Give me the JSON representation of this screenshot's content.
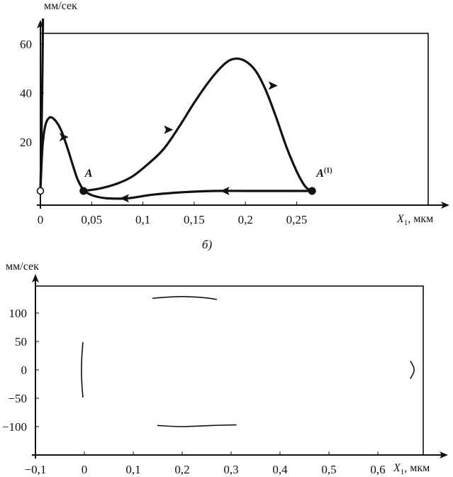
{
  "chart_data": [
    {
      "type": "line",
      "ylabel": "мм/сек",
      "xlabel_var": "X",
      "xlabel_sub": "1",
      "xlabel_unit": ", мкм",
      "xlim": [
        0,
        0.3
      ],
      "ylim": [
        -5,
        68
      ],
      "x_ticks": [
        {
          "v": 0,
          "label": "0"
        },
        {
          "v": 0.05,
          "label": "0,05"
        },
        {
          "v": 0.1,
          "label": "0,1"
        },
        {
          "v": 0.15,
          "label": "0,15"
        },
        {
          "v": 0.2,
          "label": "0,2"
        },
        {
          "v": 0.25,
          "label": "0,25"
        }
      ],
      "y_ticks": [
        {
          "v": 20,
          "label": "20"
        },
        {
          "v": 40,
          "label": "40"
        },
        {
          "v": 60,
          "label": "60"
        }
      ],
      "caption": "б)",
      "series": [
        {
          "points": [
            [
              0,
              0
            ],
            [
              0.001,
              20
            ],
            [
              0.002,
              50
            ],
            [
              0.0025,
              70
            ]
          ]
        },
        {
          "points": [
            [
              0,
              0
            ],
            [
              0.002,
              18
            ],
            [
              0.005,
              27
            ],
            [
              0.009,
              30
            ],
            [
              0.014,
              29
            ],
            [
              0.02,
              25
            ],
            [
              0.026,
              18
            ],
            [
              0.032,
              10
            ],
            [
              0.036,
              5
            ],
            [
              0.041,
              0.8
            ],
            [
              0.042,
              0
            ]
          ]
        },
        {
          "points": [
            [
              0.042,
              0
            ],
            [
              0.058,
              1
            ],
            [
              0.075,
              3
            ],
            [
              0.09,
              6
            ],
            [
              0.105,
              11
            ],
            [
              0.12,
              17
            ],
            [
              0.135,
              26
            ],
            [
              0.15,
              36
            ],
            [
              0.165,
              45
            ],
            [
              0.18,
              52
            ],
            [
              0.19,
              54
            ],
            [
              0.2,
              53
            ],
            [
              0.21,
              49
            ],
            [
              0.22,
              41
            ],
            [
              0.23,
              30
            ],
            [
              0.24,
              18
            ],
            [
              0.25,
              8
            ],
            [
              0.258,
              2
            ],
            [
              0.263,
              0.3
            ],
            [
              0.265,
              0
            ]
          ]
        },
        {
          "points": [
            [
              0.265,
              0
            ],
            [
              0.23,
              0
            ],
            [
              0.2,
              0
            ],
            [
              0.17,
              0
            ],
            [
              0.14,
              -0.5
            ],
            [
              0.11,
              -1.5
            ],
            [
              0.085,
              -3
            ],
            [
              0.065,
              -3
            ],
            [
              0.052,
              -2
            ],
            [
              0.042,
              0
            ]
          ]
        }
      ],
      "arrows": [
        {
          "x": 0.023,
          "y": 22,
          "dir": [
            1,
            -2.2
          ]
        },
        {
          "x": 0.125,
          "y": 25,
          "dir": [
            1,
            0.65
          ]
        },
        {
          "x": 0.227,
          "y": 43,
          "dir": [
            1,
            -1.7
          ]
        },
        {
          "x": 0.18,
          "y": 0,
          "dir": [
            -1,
            0
          ]
        },
        {
          "x": 0.082,
          "y": -3,
          "dir": [
            -1,
            0
          ]
        }
      ],
      "points": [
        {
          "x": 0,
          "y": 0,
          "style": "open",
          "label": ""
        },
        {
          "x": 0.042,
          "y": 0,
          "style": "filled",
          "label": "A",
          "sup": ""
        },
        {
          "x": 0.265,
          "y": 0,
          "style": "filled",
          "label": "A",
          "sup": "(1)"
        }
      ]
    },
    {
      "type": "line",
      "ylabel": "мм/сек",
      "xlabel_var": "X",
      "xlabel_sub": "1",
      "xlabel_unit": ", мкм",
      "xlim": [
        -0.1,
        0.7
      ],
      "ylim": [
        -150,
        160
      ],
      "x_ticks": [
        {
          "v": -0.1,
          "label": "−0,1"
        },
        {
          "v": 0,
          "label": "0"
        },
        {
          "v": 0.1,
          "label": "0,1"
        },
        {
          "v": 0.2,
          "label": "0,2"
        },
        {
          "v": 0.3,
          "label": "0,3"
        },
        {
          "v": 0.4,
          "label": "0,4"
        },
        {
          "v": 0.5,
          "label": "0,5"
        },
        {
          "v": 0.6,
          "label": "0,6"
        }
      ],
      "y_ticks": [
        {
          "v": 100,
          "label": "100"
        },
        {
          "v": 50,
          "label": "50"
        },
        {
          "v": 0,
          "label": "0"
        },
        {
          "v": -50,
          "label": "−50"
        },
        {
          "v": -100,
          "label": "−100"
        }
      ],
      "series": [
        {
          "points": [
            [
              0.14,
              126
            ],
            [
              0.17,
              128
            ],
            [
              0.2,
              129
            ],
            [
              0.23,
              128
            ],
            [
              0.255,
              126
            ],
            [
              0.27,
              124
            ]
          ]
        },
        {
          "points": [
            [
              0.15,
              -98
            ],
            [
              0.2,
              -100
            ],
            [
              0.26,
              -98
            ],
            [
              0.31,
              -97
            ]
          ]
        },
        {
          "points": [
            [
              -0.003,
              48
            ],
            [
              -0.005,
              25
            ],
            [
              -0.006,
              0
            ],
            [
              -0.005,
              -25
            ],
            [
              -0.003,
              -48
            ]
          ]
        },
        {
          "points": [
            [
              0.667,
              15
            ],
            [
              0.673,
              5
            ],
            [
              0.674,
              0
            ],
            [
              0.673,
              -5
            ],
            [
              0.667,
              -15
            ]
          ]
        }
      ]
    }
  ]
}
